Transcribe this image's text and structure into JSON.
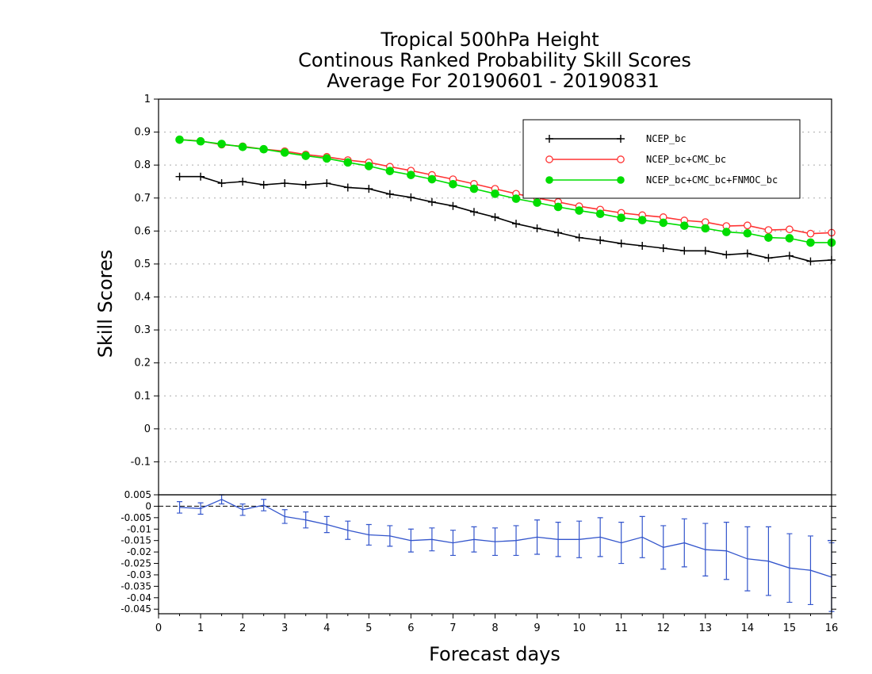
{
  "chart_data": [
    {
      "type": "line",
      "title": [
        "Tropical 500hPa Height",
        "Continous Ranked Probability Skill Scores",
        "Average For 20190601 - 20190831"
      ],
      "xlabel": "Forecast days",
      "ylabel": "Skill Scores",
      "xlim": [
        0,
        16
      ],
      "ylim": [
        -0.2,
        1
      ],
      "grid": true,
      "legend_position": "top-right",
      "x_ticks": [
        "0",
        "1",
        "2",
        "3",
        "4",
        "5",
        "6",
        "7",
        "8",
        "9",
        "10",
        "11",
        "12",
        "13",
        "14",
        "15",
        "16"
      ],
      "y_ticks": [
        "-0.1",
        "0",
        "0.1",
        "0.2",
        "0.3",
        "0.4",
        "0.5",
        "0.6",
        "0.7",
        "0.8",
        "0.9",
        "1"
      ],
      "x": [
        0.5,
        1,
        1.5,
        2,
        2.5,
        3,
        3.5,
        4,
        4.5,
        5,
        5.5,
        6,
        6.5,
        7,
        7.5,
        8,
        8.5,
        9,
        9.5,
        10,
        10.5,
        11,
        11.5,
        12,
        12.5,
        13,
        13.5,
        14,
        14.5,
        15,
        15.5,
        16
      ],
      "series": [
        {
          "name": "NCEP_bc",
          "color": "#000000",
          "marker": "plus",
          "values": [
            0.765,
            0.765,
            0.745,
            0.75,
            0.74,
            0.745,
            0.74,
            0.745,
            0.732,
            0.728,
            0.712,
            0.702,
            0.688,
            0.676,
            0.658,
            0.642,
            0.622,
            0.608,
            0.595,
            0.58,
            0.572,
            0.562,
            0.555,
            0.548,
            0.54,
            0.54,
            0.528,
            0.532,
            0.518,
            0.525,
            0.508,
            0.512
          ]
        },
        {
          "name": "NCEP_bc+CMC_bc",
          "color": "#ff3333",
          "marker": "open-circle",
          "values": [
            0.877,
            0.873,
            0.862,
            0.857,
            0.848,
            0.842,
            0.832,
            0.825,
            0.815,
            0.808,
            0.795,
            0.783,
            0.77,
            0.757,
            0.743,
            0.728,
            0.713,
            0.7,
            0.688,
            0.675,
            0.665,
            0.655,
            0.648,
            0.642,
            0.632,
            0.627,
            0.615,
            0.617,
            0.603,
            0.605,
            0.592,
            0.595
          ]
        },
        {
          "name": "NCEP_bc+CMC_bc+FNMOC_bc",
          "color": "#00dd00",
          "marker": "filled-circle",
          "values": [
            0.877,
            0.872,
            0.864,
            0.855,
            0.848,
            0.838,
            0.828,
            0.82,
            0.808,
            0.797,
            0.782,
            0.77,
            0.757,
            0.742,
            0.728,
            0.713,
            0.698,
            0.686,
            0.673,
            0.662,
            0.652,
            0.64,
            0.633,
            0.625,
            0.616,
            0.608,
            0.597,
            0.593,
            0.58,
            0.578,
            0.565,
            0.565
          ]
        }
      ]
    },
    {
      "type": "line",
      "xlim": [
        0,
        16
      ],
      "ylim": [
        -0.047,
        0.005
      ],
      "y_ticks": [
        "-0.045",
        "-0.04",
        "-0.035",
        "-0.03",
        "-0.025",
        "-0.02",
        "-0.015",
        "-0.01",
        "-0.005",
        "0",
        "0.005"
      ],
      "series": [
        {
          "color": "#3355cc",
          "values": [
            -0.0005,
            -0.001,
            0.003,
            -0.0015,
            0.0005,
            -0.0045,
            -0.006,
            -0.008,
            -0.0105,
            -0.0125,
            -0.013,
            -0.015,
            -0.0145,
            -0.016,
            -0.0145,
            -0.0155,
            -0.015,
            -0.0135,
            -0.0145,
            -0.0145,
            -0.0135,
            -0.016,
            -0.0135,
            -0.018,
            -0.016,
            -0.019,
            -0.0195,
            -0.023,
            -0.024,
            -0.027,
            -0.028,
            -0.031
          ],
          "errors": [
            0.0025,
            0.0025,
            0.002,
            0.0025,
            0.0025,
            0.003,
            0.0035,
            0.0035,
            0.004,
            0.0045,
            0.0045,
            0.005,
            0.005,
            0.0055,
            0.0055,
            0.006,
            0.0065,
            0.0075,
            0.0075,
            0.008,
            0.0085,
            0.009,
            0.009,
            0.0095,
            0.0105,
            0.0115,
            0.0125,
            0.014,
            0.015,
            0.015,
            0.015,
            0.015
          ]
        }
      ],
      "reference_line": 0,
      "right_edge_marker": -0.015
    }
  ]
}
